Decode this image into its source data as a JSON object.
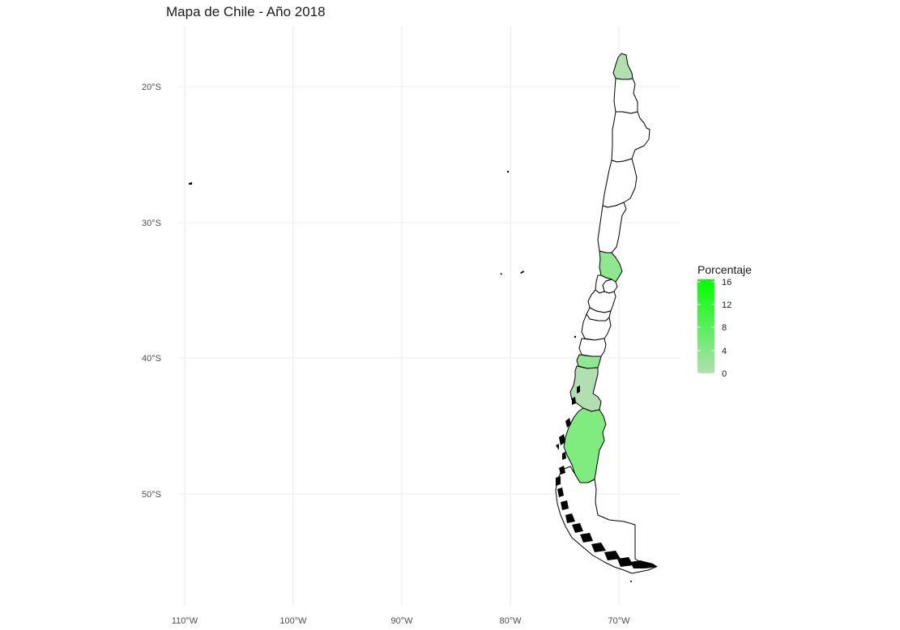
{
  "title": "Mapa de Chile - Año 2018",
  "colors": {
    "low": "#b2dfb2",
    "high": "#00ff00",
    "no_data": "#ffffff",
    "grid": "#ebebeb"
  },
  "axes": {
    "x_ticks": [
      "110°W",
      "100°W",
      "90°W",
      "80°W",
      "70°W"
    ],
    "y_ticks": [
      "20°S",
      "30°S",
      "40°S",
      "50°S"
    ]
  },
  "legend": {
    "title": "Porcentaje",
    "ticks": [
      "16",
      "12",
      "8",
      "4",
      "0"
    ],
    "range": [
      0,
      16
    ]
  },
  "chart_data": {
    "type": "map",
    "title": "Mapa de Chile - Año 2018",
    "xlim": [
      -111,
      -66
    ],
    "ylim": [
      -57,
      -17
    ],
    "regions": [
      {
        "name": "Arica y Parinacota",
        "value": 2
      },
      {
        "name": "Tarapacá",
        "value": null
      },
      {
        "name": "Antofagasta",
        "value": null
      },
      {
        "name": "Atacama",
        "value": null
      },
      {
        "name": "Coquimbo",
        "value": null
      },
      {
        "name": "Valparaíso",
        "value": 9
      },
      {
        "name": "Metropolitana",
        "value": null
      },
      {
        "name": "O'Higgins",
        "value": null
      },
      {
        "name": "Maule",
        "value": null
      },
      {
        "name": "Ñuble",
        "value": null
      },
      {
        "name": "Biobío",
        "value": null
      },
      {
        "name": "Araucanía",
        "value": null
      },
      {
        "name": "Los Ríos",
        "value": 10
      },
      {
        "name": "Los Lagos",
        "value": 2
      },
      {
        "name": "Aysén",
        "value": 10
      },
      {
        "name": "Magallanes",
        "value": null
      }
    ]
  }
}
